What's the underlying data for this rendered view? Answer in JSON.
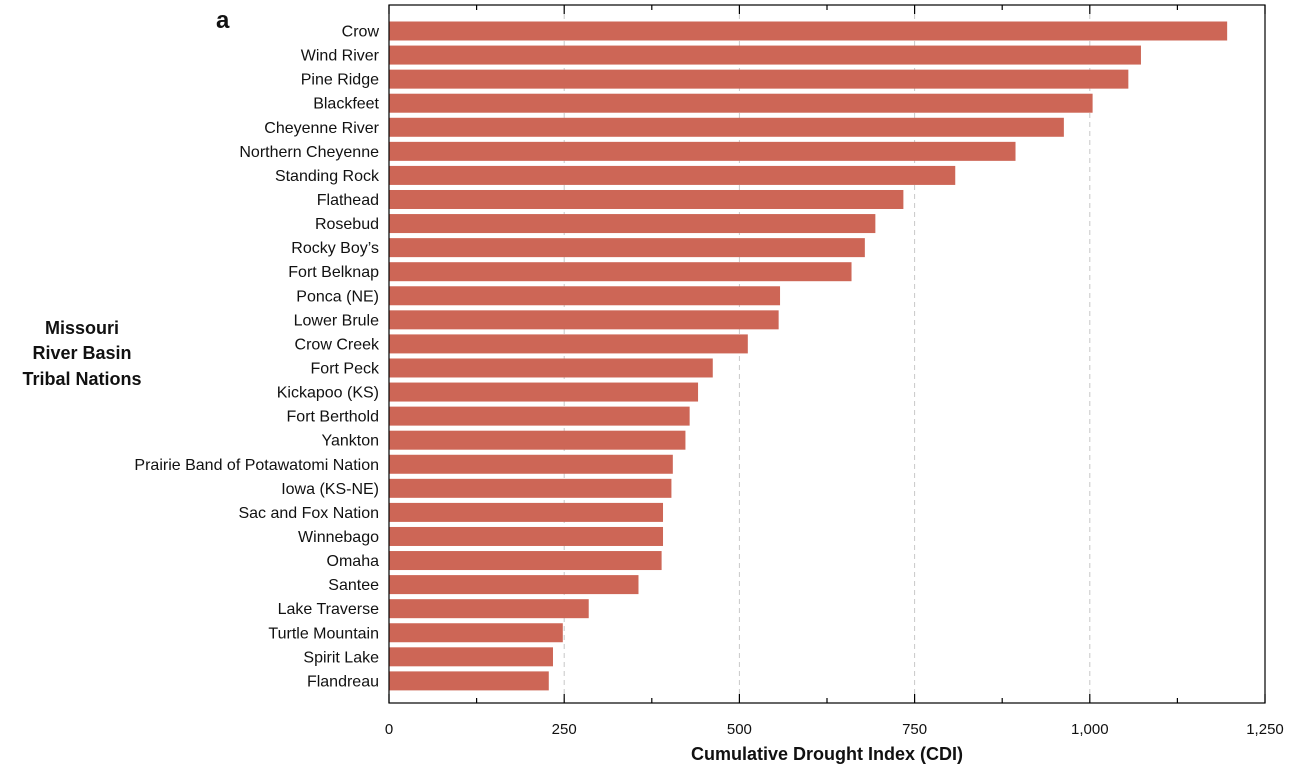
{
  "chart_data": {
    "type": "bar",
    "orientation": "horizontal",
    "panel_label": "a",
    "xlabel": "Cumulative Drought Index (CDI)",
    "ylabel_lines": [
      "Missouri",
      "River Basin",
      "Tribal Nations"
    ],
    "xlim": [
      0,
      1250
    ],
    "xticks": [
      0,
      250,
      500,
      750,
      1000,
      1250
    ],
    "xtick_labels": [
      "0",
      "250",
      "500",
      "750",
      "1,000",
      "1,250"
    ],
    "grid": "vertical dashed at x ticks",
    "bar_color": "#cd6656",
    "categories": [
      "Crow",
      "Wind River",
      "Pine Ridge",
      "Blackfeet",
      "Cheyenne River",
      "Northern Cheyenne",
      "Standing Rock",
      "Flathead",
      "Rosebud",
      "Rocky Boy’s",
      "Fort Belknap",
      "Ponca (NE)",
      "Lower Brule",
      "Crow Creek",
      "Fort Peck",
      "Kickapoo (KS)",
      "Fort Berthold",
      "Yankton",
      "Prairie Band of Potawatomi Nation",
      "Iowa (KS-NE)",
      "Sac and Fox Nation",
      "Winnebago",
      "Omaha",
      "Santee",
      "Lake Traverse",
      "Turtle Mountain",
      "Spirit Lake",
      "Flandreau"
    ],
    "values": [
      1196,
      1073,
      1055,
      1004,
      963,
      894,
      808,
      734,
      694,
      679,
      660,
      558,
      556,
      512,
      462,
      441,
      429,
      423,
      405,
      403,
      391,
      391,
      389,
      356,
      285,
      248,
      234,
      228
    ]
  }
}
